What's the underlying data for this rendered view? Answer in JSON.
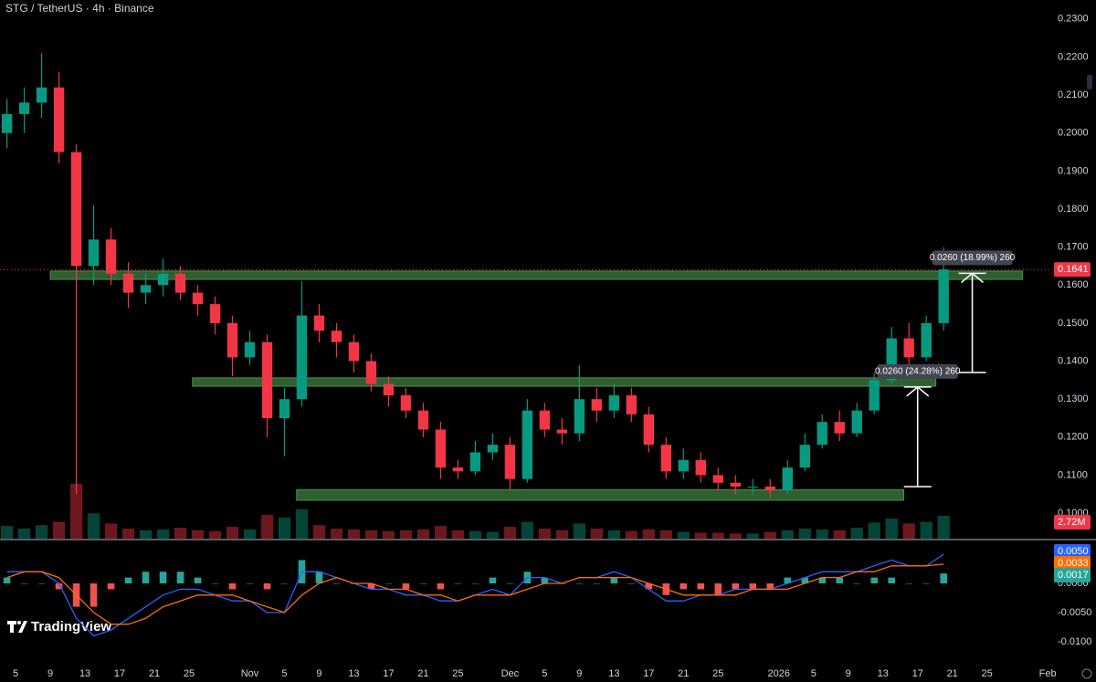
{
  "header": {
    "title": "STG / TetherUS · 4h · Binance"
  },
  "brand": "TradingView",
  "chart_data": {
    "type": "candlestick",
    "x": [
      -1,
      1,
      3,
      5,
      7,
      9,
      11,
      13,
      15,
      17,
      19,
      21,
      23,
      25,
      27,
      29,
      31,
      33,
      35,
      37,
      39,
      41,
      43,
      45,
      47,
      49,
      51,
      53,
      55,
      57,
      59,
      61,
      63,
      65,
      67,
      69,
      71,
      73,
      75,
      77,
      79,
      81,
      83,
      85,
      87,
      89,
      91,
      93,
      95,
      97,
      99,
      101,
      103,
      105,
      107
    ],
    "open": [
      0.2,
      0.205,
      0.208,
      0.212,
      0.195,
      0.165,
      0.172,
      0.163,
      0.158,
      0.16,
      0.163,
      0.158,
      0.155,
      0.15,
      0.141,
      0.145,
      0.125,
      0.13,
      0.152,
      0.148,
      0.145,
      0.14,
      0.134,
      0.131,
      0.127,
      0.122,
      0.112,
      0.111,
      0.116,
      0.118,
      0.109,
      0.127,
      0.122,
      0.121,
      0.13,
      0.127,
      0.131,
      0.126,
      0.118,
      0.111,
      0.114,
      0.11,
      0.108,
      0.107,
      0.107,
      0.106,
      0.112,
      0.118,
      0.124,
      0.121,
      0.127,
      0.135,
      0.146,
      0.141,
      0.15
    ],
    "high": [
      0.209,
      0.212,
      0.221,
      0.216,
      0.197,
      0.181,
      0.175,
      0.166,
      0.163,
      0.167,
      0.165,
      0.16,
      0.157,
      0.152,
      0.148,
      0.147,
      0.133,
      0.161,
      0.155,
      0.15,
      0.147,
      0.142,
      0.136,
      0.133,
      0.129,
      0.124,
      0.114,
      0.119,
      0.121,
      0.12,
      0.13,
      0.129,
      0.125,
      0.139,
      0.133,
      0.134,
      0.133,
      0.128,
      0.12,
      0.117,
      0.116,
      0.112,
      0.11,
      0.109,
      0.109,
      0.114,
      0.121,
      0.126,
      0.127,
      0.129,
      0.137,
      0.149,
      0.15,
      0.152,
      0.17
    ],
    "low": [
      0.196,
      0.2,
      0.204,
      0.192,
      0.105,
      0.16,
      0.16,
      0.154,
      0.155,
      0.157,
      0.156,
      0.152,
      0.147,
      0.136,
      0.139,
      0.12,
      0.115,
      0.128,
      0.145,
      0.141,
      0.137,
      0.132,
      0.128,
      0.125,
      0.12,
      0.109,
      0.109,
      0.11,
      0.114,
      0.106,
      0.108,
      0.12,
      0.118,
      0.119,
      0.124,
      0.125,
      0.124,
      0.116,
      0.109,
      0.109,
      0.108,
      0.106,
      0.105,
      0.105,
      0.104,
      0.105,
      0.111,
      0.117,
      0.119,
      0.12,
      0.126,
      0.134,
      0.139,
      0.14,
      0.148
    ],
    "close": [
      0.205,
      0.208,
      0.212,
      0.195,
      0.165,
      0.172,
      0.163,
      0.158,
      0.16,
      0.163,
      0.158,
      0.155,
      0.15,
      0.141,
      0.145,
      0.125,
      0.13,
      0.152,
      0.148,
      0.145,
      0.14,
      0.134,
      0.131,
      0.127,
      0.122,
      0.112,
      0.111,
      0.116,
      0.118,
      0.109,
      0.127,
      0.122,
      0.121,
      0.13,
      0.127,
      0.131,
      0.126,
      0.118,
      0.111,
      0.114,
      0.11,
      0.108,
      0.107,
      0.107,
      0.106,
      0.112,
      0.118,
      0.124,
      0.121,
      0.127,
      0.135,
      0.146,
      0.141,
      0.15,
      0.1641
    ],
    "up_color": "#089981",
    "down_color": "#f23645",
    "xlim": [
      -1.8,
      119.3
    ],
    "xticks": [
      {
        "value": 0,
        "label": "5"
      },
      {
        "value": 4,
        "label": "9"
      },
      {
        "value": 8,
        "label": "13"
      },
      {
        "value": 12,
        "label": "17"
      },
      {
        "value": 16,
        "label": "21"
      },
      {
        "value": 20,
        "label": "25"
      },
      {
        "value": 27,
        "label": "Nov"
      },
      {
        "value": 31,
        "label": "5"
      },
      {
        "value": 35,
        "label": "9"
      },
      {
        "value": 39,
        "label": "13"
      },
      {
        "value": 43,
        "label": "17"
      },
      {
        "value": 47,
        "label": "21"
      },
      {
        "value": 51,
        "label": "25"
      },
      {
        "value": 57,
        "label": "Dec"
      },
      {
        "value": 61,
        "label": "5"
      },
      {
        "value": 65,
        "label": "9"
      },
      {
        "value": 69,
        "label": "13"
      },
      {
        "value": 73,
        "label": "17"
      },
      {
        "value": 77,
        "label": "21"
      },
      {
        "value": 81,
        "label": "25"
      },
      {
        "value": 88,
        "label": "2026"
      },
      {
        "value": 92,
        "label": "5"
      },
      {
        "value": 96,
        "label": "9"
      },
      {
        "value": 100,
        "label": "13"
      },
      {
        "value": 104,
        "label": "17"
      },
      {
        "value": 108,
        "label": "21"
      },
      {
        "value": 112,
        "label": "25"
      },
      {
        "value": 119,
        "label": "Feb"
      }
    ],
    "ylim": [
      0.0933,
      0.235
    ],
    "yticks": [
      {
        "value": 0.1,
        "label": "0.1000"
      },
      {
        "value": 0.11,
        "label": "0.1100"
      },
      {
        "value": 0.12,
        "label": "0.1200"
      },
      {
        "value": 0.13,
        "label": "0.1300"
      },
      {
        "value": 0.14,
        "label": "0.1400"
      },
      {
        "value": 0.15,
        "label": "0.1500"
      },
      {
        "value": 0.16,
        "label": "0.1600"
      },
      {
        "value": 0.17,
        "label": "0.1700"
      },
      {
        "value": 0.18,
        "label": "0.1800"
      },
      {
        "value": 0.19,
        "label": "0.1900"
      },
      {
        "value": 0.2,
        "label": "0.2000"
      },
      {
        "value": 0.21,
        "label": "0.2100"
      },
      {
        "value": 0.22,
        "label": "0.2200"
      },
      {
        "value": 0.23,
        "label": "0.2300"
      }
    ],
    "price_line_color": "#f23645",
    "zone_color": "#2f5f2f",
    "zones": [
      {
        "x": [
          4.0,
          116.1
        ],
        "y": [
          0.1615,
          0.1637
        ]
      },
      {
        "x": [
          20.4,
          106.1
        ],
        "y": [
          0.1334,
          0.1356
        ]
      },
      {
        "x": [
          32.4,
          102.4
        ],
        "y": [
          0.1034,
          0.1062
        ]
      }
    ],
    "measures": [
      {
        "label": "0.0260 (24.28%) 260",
        "x": 104,
        "y": [
          0.107,
          0.1332
        ]
      },
      {
        "label": "0.0260 (18.99%) 260",
        "x": 110.3,
        "y": [
          0.137,
          0.1631
        ]
      }
    ],
    "volume": {
      "values": [
        1.5,
        1.2,
        1.6,
        2.0,
        6.5,
        3.0,
        1.8,
        1.2,
        1.0,
        1.1,
        1.3,
        1.0,
        0.9,
        1.4,
        1.1,
        2.8,
        2.5,
        3.5,
        1.6,
        1.2,
        1.1,
        1.0,
        0.9,
        1.0,
        1.1,
        1.5,
        1.0,
        0.9,
        0.8,
        1.4,
        2.0,
        1.2,
        1.0,
        1.8,
        1.2,
        1.0,
        0.9,
        1.1,
        1.0,
        0.8,
        0.7,
        0.7,
        0.6,
        0.6,
        0.8,
        1.0,
        1.2,
        1.1,
        1.0,
        1.3,
        1.9,
        2.4,
        1.8,
        2.0,
        2.72
      ],
      "last_label": "2.72M",
      "color": "#f23645"
    },
    "indicator": {
      "type": "macd",
      "ylim": [
        -0.0108,
        0.0072
      ],
      "yticks": [
        {
          "value": 0,
          "label": "0.0000"
        },
        {
          "value": -0.005,
          "label": "-0.0050"
        },
        {
          "value": -0.01,
          "label": "-0.0100"
        }
      ],
      "macd": {
        "color": "#2962ff",
        "last_label": "0.0050",
        "values": [
          0.002,
          0.002,
          0.002,
          0.0,
          -0.006,
          -0.009,
          -0.008,
          -0.006,
          -0.004,
          -0.002,
          -0.001,
          -0.001,
          -0.002,
          -0.003,
          -0.003,
          -0.005,
          -0.005,
          0.002,
          0.002,
          0.001,
          0.0,
          -0.001,
          -0.001,
          -0.002,
          -0.002,
          -0.003,
          -0.003,
          -0.002,
          -0.001,
          -0.002,
          0.001,
          0.001,
          0.0,
          0.001,
          0.001,
          0.002,
          0.001,
          -0.001,
          -0.003,
          -0.003,
          -0.002,
          -0.002,
          -0.001,
          -0.001,
          -0.001,
          0.0,
          0.001,
          0.002,
          0.002,
          0.002,
          0.003,
          0.004,
          0.003,
          0.003,
          0.005
        ]
      },
      "signal": {
        "color": "#ff6d00",
        "last_label": "0.0033",
        "values": [
          0.001,
          0.002,
          0.002,
          0.001,
          -0.002,
          -0.005,
          -0.007,
          -0.007,
          -0.006,
          -0.004,
          -0.003,
          -0.002,
          -0.002,
          -0.002,
          -0.003,
          -0.004,
          -0.005,
          -0.002,
          0.0,
          0.001,
          0.0,
          0.0,
          -0.001,
          -0.001,
          -0.002,
          -0.002,
          -0.003,
          -0.002,
          -0.002,
          -0.002,
          -0.001,
          0.0,
          0.0,
          0.001,
          0.001,
          0.001,
          0.001,
          0.0,
          -0.001,
          -0.002,
          -0.002,
          -0.002,
          -0.002,
          -0.001,
          -0.001,
          -0.001,
          0.0,
          0.001,
          0.001,
          0.002,
          0.002,
          0.003,
          0.003,
          0.003,
          0.0033
        ]
      },
      "histogram": {
        "color": "#26a69a",
        "down_color": "#ef5350",
        "last_label": "0.0017",
        "values": [
          0.001,
          0,
          0,
          -0.001,
          -0.004,
          -0.004,
          -0.001,
          0.001,
          0.002,
          0.002,
          0.002,
          0.001,
          0,
          -0.001,
          0,
          -0.001,
          0,
          0.004,
          0.002,
          0,
          0,
          -0.001,
          0,
          -0.001,
          0,
          -0.001,
          0,
          0,
          0.001,
          0,
          0.002,
          0.001,
          0,
          0,
          0,
          0.001,
          0,
          -0.001,
          -0.002,
          -0.001,
          -0.001,
          -0.002,
          -0.001,
          -0.001,
          -0.001,
          0.001,
          0.001,
          0.001,
          0.001,
          0,
          0.001,
          0.001,
          0,
          0,
          0.0017
        ]
      }
    }
  }
}
